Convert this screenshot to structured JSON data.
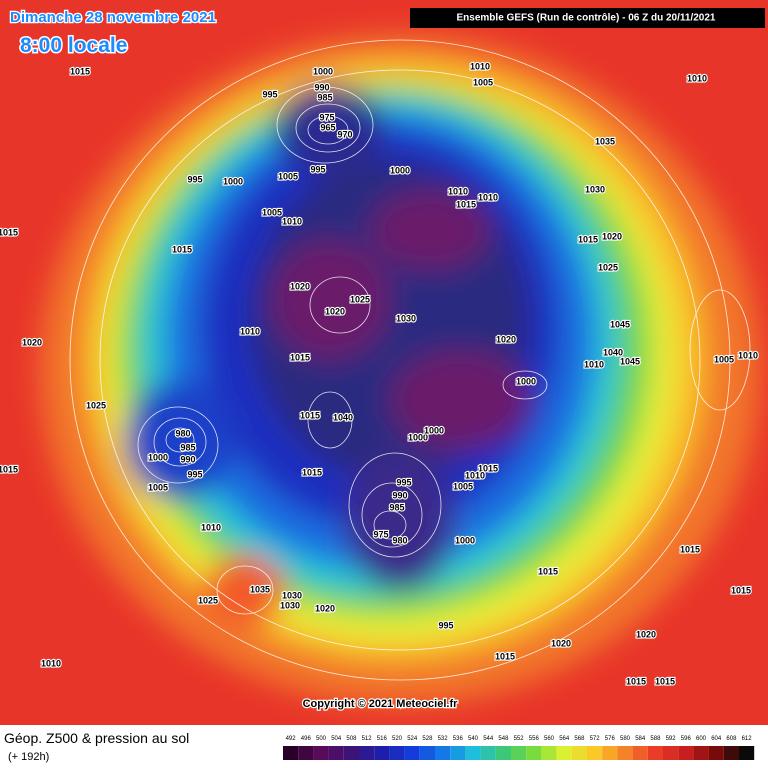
{
  "header": {
    "date": "Dimanche 28 novembre 2021",
    "time": "8:00 locale",
    "model": "Ensemble GEFS  (Run de contrôle)  -  06 Z du 20/11/2021"
  },
  "copyright": "Copyright © 2021 Meteociel.fr",
  "legend": {
    "title": "Géop. Z500 & pression au sol",
    "lead": "(+ 192h)",
    "values": [
      492,
      496,
      500,
      504,
      508,
      512,
      516,
      520,
      524,
      528,
      532,
      536,
      540,
      544,
      548,
      552,
      556,
      560,
      564,
      568,
      572,
      576,
      580,
      584,
      588,
      592,
      596,
      600,
      604,
      608,
      612
    ]
  },
  "pressure_labels": [
    "1015",
    "1000",
    "990",
    "985",
    "975",
    "965",
    "970",
    "995",
    "1010",
    "1005",
    "1010",
    "1035",
    "995",
    "1000",
    "1005",
    "995",
    "1000",
    "1010",
    "1015",
    "1010",
    "1030",
    "1005",
    "1010",
    "1015",
    "1015",
    "1020",
    "1025",
    "1020",
    "1025",
    "1020",
    "1030",
    "1045",
    "1010",
    "1020",
    "1020",
    "1015",
    "1040",
    "1010",
    "1045",
    "1005",
    "1010",
    "1000",
    "1025",
    "1015",
    "1040",
    "1000",
    "1000",
    "980",
    "985",
    "1000",
    "990",
    "995",
    "1015",
    "1015",
    "1015",
    "1010",
    "995",
    "1005",
    "1005",
    "990",
    "985",
    "975",
    "980",
    "1010",
    "1000",
    "1015",
    "1015",
    "1035",
    "1030",
    "1030",
    "1025",
    "1020",
    "1015",
    "995",
    "1020",
    "1020",
    "1015",
    "1010",
    "1015",
    "1015",
    "1015"
  ]
}
